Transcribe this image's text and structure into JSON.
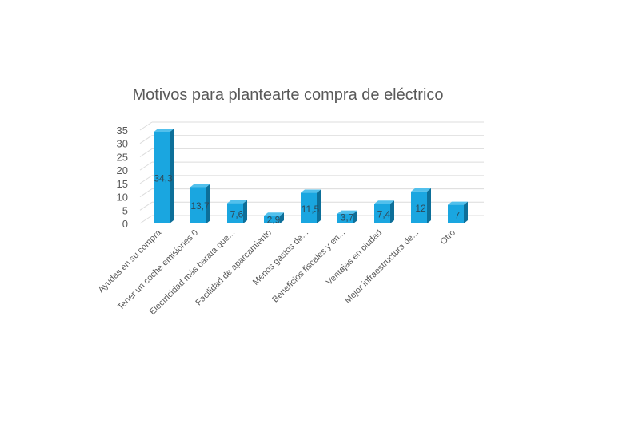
{
  "chart_data": {
    "type": "bar",
    "title": "Motivos para plantearte compra de eléctrico",
    "categories": [
      "Ayudas en su compra",
      "Tener un coche emisiones 0",
      "Electricidad más barata que...",
      "Facilidad de aparcamiento",
      "Menos gastos de...",
      "Beneficios fiscales y en...",
      "Ventajas en ciudad",
      "Mejor infraestructura de...",
      "Otro"
    ],
    "values": [
      34.3,
      13.7,
      7.6,
      2.9,
      11.5,
      3.7,
      7.4,
      12,
      7
    ],
    "data_labels": [
      "34,3",
      "13,7",
      "7,6",
      "2,9",
      "11,5",
      "3,7",
      "7,4",
      "12",
      "7"
    ],
    "yticks": [
      "0",
      "5",
      "10",
      "15",
      "20",
      "25",
      "30",
      "35"
    ],
    "ylim": [
      0,
      35
    ],
    "grid": true,
    "style": "3d-column",
    "colors": {
      "bar": "#1aa6e0",
      "bar_side": "#0d6f99",
      "bar_top": "#52c0ec",
      "grid": "#dcdcdc",
      "text": "#595959"
    }
  }
}
